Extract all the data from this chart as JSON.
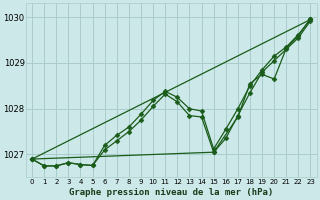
{
  "bg_color": "#cce8e8",
  "grid_color": "#aacccc",
  "line_color": "#1a5c1a",
  "title": "Graphe pression niveau de la mer (hPa)",
  "ylim": [
    1026.5,
    1030.3
  ],
  "yticks": [
    1027,
    1028,
    1029,
    1030
  ],
  "xlim": [
    -0.5,
    23.5
  ],
  "xticks": [
    0,
    1,
    2,
    3,
    4,
    5,
    6,
    7,
    8,
    9,
    10,
    11,
    12,
    13,
    14,
    15,
    16,
    17,
    18,
    19,
    20,
    21,
    22,
    23
  ],
  "line1_x": [
    0,
    1,
    2,
    3,
    4,
    5,
    6,
    7,
    8,
    9,
    10,
    11,
    12,
    13,
    14,
    15,
    16,
    17,
    18,
    19,
    20,
    21,
    22,
    23
  ],
  "line1_y": [
    1026.9,
    1026.75,
    1026.75,
    1026.82,
    1026.78,
    1026.76,
    1027.1,
    1027.3,
    1027.5,
    1027.75,
    1028.05,
    1028.32,
    1028.15,
    1027.85,
    1027.82,
    1027.05,
    1027.35,
    1027.85,
    1028.35,
    1028.8,
    1029.05,
    1029.3,
    1029.55,
    1029.92
  ],
  "line2_x": [
    0,
    1,
    2,
    3,
    4,
    5,
    6,
    7,
    8,
    9,
    10,
    11,
    12,
    13,
    14,
    15,
    16,
    17,
    18,
    19,
    20,
    21,
    22,
    23
  ],
  "line2_y": [
    1026.9,
    1026.75,
    1026.75,
    1026.82,
    1026.78,
    1026.76,
    1027.2,
    1027.42,
    1027.6,
    1027.88,
    1028.18,
    1028.38,
    1028.25,
    1028.0,
    1027.95,
    1027.12,
    1027.55,
    1028.0,
    1028.5,
    1028.85,
    1029.15,
    1029.35,
    1029.62,
    1029.95
  ],
  "line3_x": [
    0,
    23
  ],
  "line3_y": [
    1026.9,
    1029.95
  ],
  "line4_x": [
    0,
    15,
    17,
    18,
    19,
    20,
    21,
    22,
    23
  ],
  "line4_y": [
    1026.9,
    1027.05,
    1027.82,
    1028.55,
    1028.75,
    1028.65,
    1029.32,
    1029.6,
    1029.97
  ]
}
